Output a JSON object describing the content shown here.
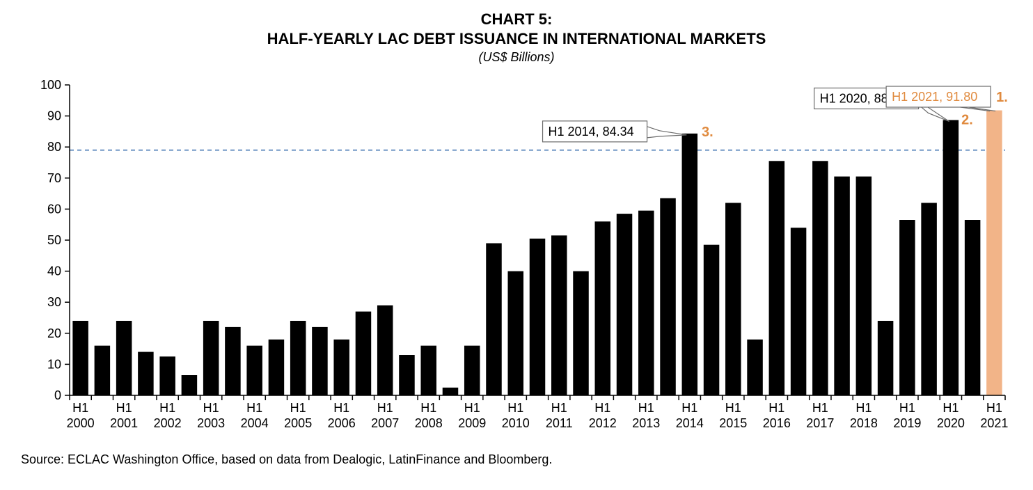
{
  "title_line1": "CHART 5:",
  "title_line2": "HALF-YEARLY LAC DEBT ISSUANCE IN INTERNATIONAL MARKETS",
  "subtitle": "(US$ Billions)",
  "source": "Source: ECLAC Washington Office, based on data from Dealogic, LatinFinance and Bloomberg.",
  "chart": {
    "type": "bar",
    "background_color": "#ffffff",
    "bar_color_default": "#000000",
    "bar_color_highlight": "#f2b488",
    "axis_color": "#000000",
    "refline_color": "#4a7bb5",
    "refline_value": 79,
    "ylim": [
      0,
      100
    ],
    "ytick_step": 10,
    "tick_fontsize": 18,
    "title_fontsize": 22,
    "subtitle_fontsize": 18,
    "bar_gap_ratio": 0.28,
    "years": [
      "2000",
      "2001",
      "2002",
      "2003",
      "2004",
      "2005",
      "2006",
      "2007",
      "2008",
      "2009",
      "2010",
      "2011",
      "2012",
      "2013",
      "2014",
      "2015",
      "2016",
      "2017",
      "2018",
      "2019",
      "2020",
      "2021"
    ],
    "x_prefix": "H1",
    "values": [
      24,
      16,
      24,
      14,
      12.5,
      6.5,
      24,
      22,
      16,
      18,
      24,
      22,
      18,
      27,
      29,
      13,
      16,
      2.5,
      16,
      49,
      40,
      50.5,
      51.5,
      40,
      56,
      58.5,
      59.5,
      63.5,
      84.34,
      48.5,
      62,
      18,
      75.5,
      54,
      75.5,
      70.5,
      70.5,
      24,
      56.5,
      62,
      88.69,
      56.5,
      91.8
    ],
    "highlight_index": 42,
    "callouts": [
      {
        "label": "H1 2014, 84.34",
        "bar_index": 28,
        "rank": "3.",
        "boxed": true,
        "text_color": "#000000"
      },
      {
        "label": "H1 2020, 88.69",
        "bar_index": 40,
        "rank": "2.",
        "boxed": true,
        "text_color": "#000000"
      },
      {
        "label": "H1 2021, 91.80",
        "bar_index": 42,
        "rank": "1.",
        "boxed": true,
        "text_color": "#e08a3e"
      }
    ],
    "callout_box_stroke": "#6b6b6b",
    "callout_box_fill": "#ffffff",
    "rank_color": "#e08a3e"
  }
}
